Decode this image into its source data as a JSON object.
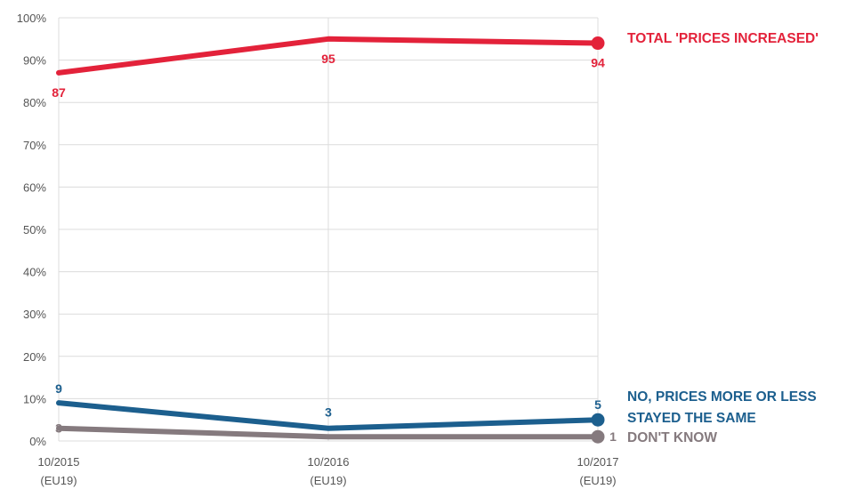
{
  "chart_data": {
    "type": "line",
    "x": [
      "10/2015",
      "10/2016",
      "10/2017"
    ],
    "x_sub": [
      "(EU19)",
      "(EU19)",
      "(EU19)"
    ],
    "ylim": [
      0,
      100
    ],
    "yticks": [
      "0%",
      "10%",
      "20%",
      "30%",
      "40%",
      "50%",
      "60%",
      "70%",
      "80%",
      "90%",
      "100%"
    ],
    "series": [
      {
        "name": "TOTAL 'PRICES INCREASED'",
        "label_lines": [
          "TOTAL 'PRICES INCREASED'"
        ],
        "values": [
          87,
          95,
          94
        ],
        "labels": [
          "87",
          "95",
          "94"
        ],
        "color": "#e3223a"
      },
      {
        "name": "NO, PRICES MORE OR LESS STAYED THE SAME",
        "label_lines": [
          "NO, PRICES MORE OR LESS",
          "STAYED THE SAME"
        ],
        "values": [
          9,
          3,
          5
        ],
        "labels": [
          "9",
          "3",
          "5"
        ],
        "color": "#1c5f8e"
      },
      {
        "name": "DON'T KNOW",
        "label_lines": [
          "DON'T KNOW"
        ],
        "values": [
          3,
          1,
          1
        ],
        "labels": [
          "3",
          "",
          "1"
        ],
        "color": "#857a7e"
      }
    ],
    "grid": true,
    "legend": "right of line ends"
  }
}
